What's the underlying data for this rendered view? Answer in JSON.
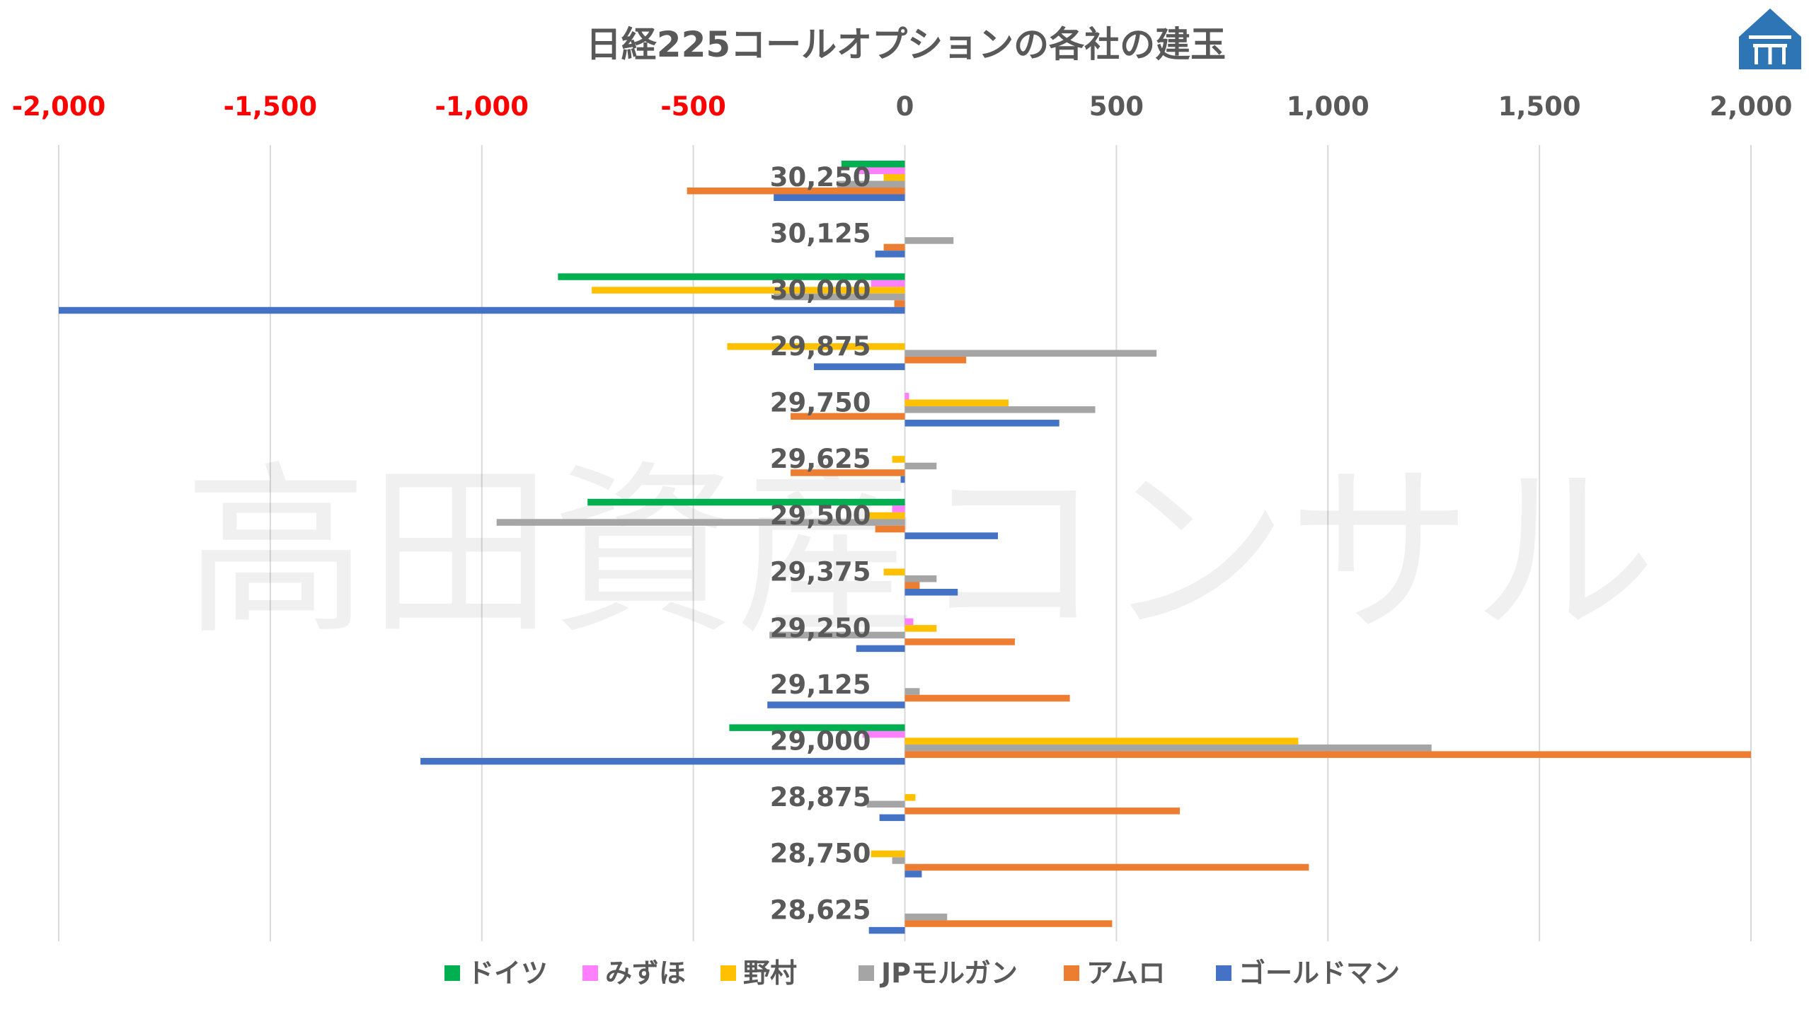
{
  "watermark_text": "高田資産コンサル",
  "chart_data": {
    "type": "bar",
    "orientation": "horizontal",
    "title": "日経225コールオプションの各社の建玉",
    "xlabel": "",
    "ylabel": "",
    "xlim": [
      -2000,
      2000
    ],
    "x_ticks": [
      -2000,
      -1500,
      -1000,
      -500,
      0,
      500,
      1000,
      1500,
      2000
    ],
    "x_tick_labels": [
      "-2,000",
      "-1,500",
      "-1,000",
      "-500",
      "0",
      "500",
      "1,000",
      "1,500",
      "2,000"
    ],
    "negative_tick_color": "#FF0000",
    "positive_tick_color": "#595959",
    "grid": "vertical",
    "legend_position": "bottom",
    "categories": [
      "30,250",
      "30,125",
      "30,000",
      "29,875",
      "29,750",
      "29,625",
      "29,500",
      "29,375",
      "29,250",
      "29,125",
      "29,000",
      "28,875",
      "28,750",
      "28,625"
    ],
    "series": [
      {
        "name": "ドイツ",
        "color": "#00B050",
        "values": [
          -150,
          0,
          -820,
          0,
          0,
          0,
          -750,
          0,
          0,
          0,
          -415,
          0,
          0,
          0
        ]
      },
      {
        "name": "みずほ",
        "color": "#FF80FF",
        "values": [
          -110,
          0,
          -80,
          0,
          10,
          0,
          -30,
          0,
          20,
          0,
          -100,
          0,
          0,
          0
        ]
      },
      {
        "name": "野村",
        "color": "#FFC000",
        "values": [
          -50,
          0,
          -740,
          -420,
          245,
          -30,
          -90,
          -50,
          75,
          0,
          930,
          25,
          -80,
          0
        ]
      },
      {
        "name": "JPモルガン",
        "color": "#A5A5A5",
        "values": [
          -160,
          115,
          -310,
          595,
          450,
          75,
          -965,
          75,
          -320,
          35,
          1245,
          -90,
          -30,
          100
        ]
      },
      {
        "name": "アムロ",
        "color": "#ED7D31",
        "values": [
          -515,
          -50,
          -25,
          145,
          -270,
          -270,
          -70,
          35,
          260,
          390,
          2000,
          650,
          955,
          490
        ]
      },
      {
        "name": "ゴールドマン",
        "color": "#4472C4",
        "values": [
          -310,
          -70,
          -2000,
          -215,
          365,
          -10,
          220,
          125,
          -115,
          -325,
          -1145,
          -60,
          40,
          -85
        ]
      }
    ]
  },
  "logo": {
    "name": "takata-logo",
    "color": "#2E75B6"
  }
}
